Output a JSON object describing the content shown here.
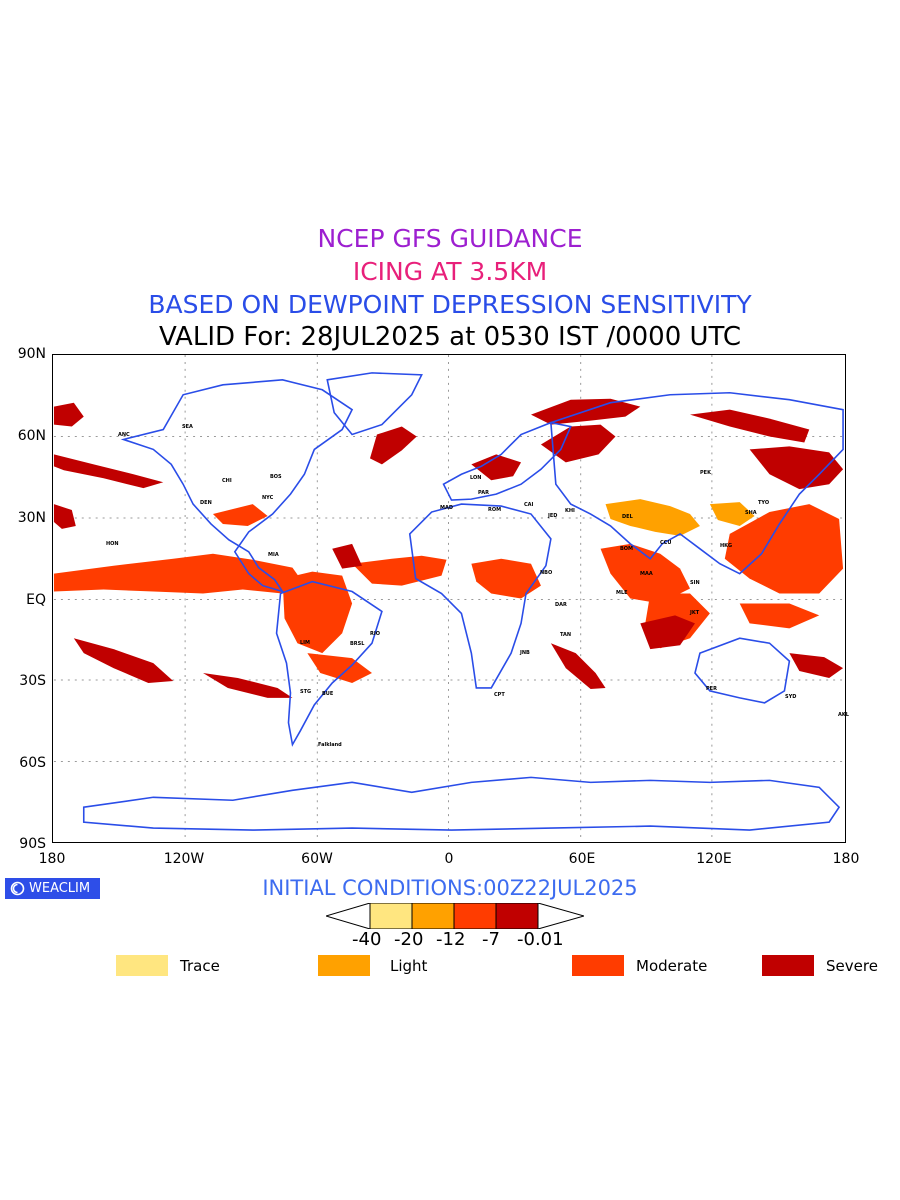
{
  "title": {
    "line1": "NCEP GFS GUIDANCE",
    "line2": "ICING AT 3.5KM",
    "line3": "BASED ON DEWPOINT DEPRESSION SENSITIVITY",
    "line4": "VALID For: 28JUL2025 at 0530 IST /0000 UTC"
  },
  "axes": {
    "lat_labels": [
      "90N",
      "60N",
      "30N",
      "EQ",
      "30S",
      "60S",
      "90S"
    ],
    "lon_labels": [
      "180",
      "120W",
      "60W",
      "0",
      "60E",
      "120E",
      "180"
    ]
  },
  "map": {
    "projection": "equirectangular",
    "lon_range": [
      -180,
      180
    ],
    "lat_range": [
      -90,
      90
    ],
    "coastline_color": "#2a4de8",
    "grid": "dotted"
  },
  "logo": {
    "text": "WEACLIM"
  },
  "initial_conditions": "INITIAL CONDITIONS:00Z22JUL2025",
  "colorbar": {
    "ticks": [
      "-40",
      "-20",
      "-12",
      "-7",
      "-0.01"
    ],
    "colors": [
      "#ffe680",
      "#ffa100",
      "#ff3c00",
      "#c00000"
    ]
  },
  "legend": [
    {
      "label": "Trace",
      "color": "#ffe680"
    },
    {
      "label": "Light",
      "color": "#ffa100"
    },
    {
      "label": "Moderate",
      "color": "#ff3c00"
    },
    {
      "label": "Severe",
      "color": "#c00000"
    }
  ],
  "station_labels": [
    "ANC",
    "SEA",
    "DEN",
    "CHI",
    "NYC",
    "BOS",
    "MIA",
    "HON",
    "LIM",
    "BRSL",
    "RIO",
    "STG",
    "BUE",
    "Falkland",
    "LON",
    "PAR",
    "MAD",
    "ROM",
    "CAI",
    "JED",
    "NBO",
    "DAR",
    "KHI",
    "DEL",
    "BOM",
    "MAA",
    "CCU",
    "PEK",
    "TYO",
    "SHA",
    "HKG",
    "SIN",
    "JKT",
    "PER",
    "SYD",
    "AKL",
    "CPT",
    "JNB",
    "TAN",
    "MLE"
  ]
}
